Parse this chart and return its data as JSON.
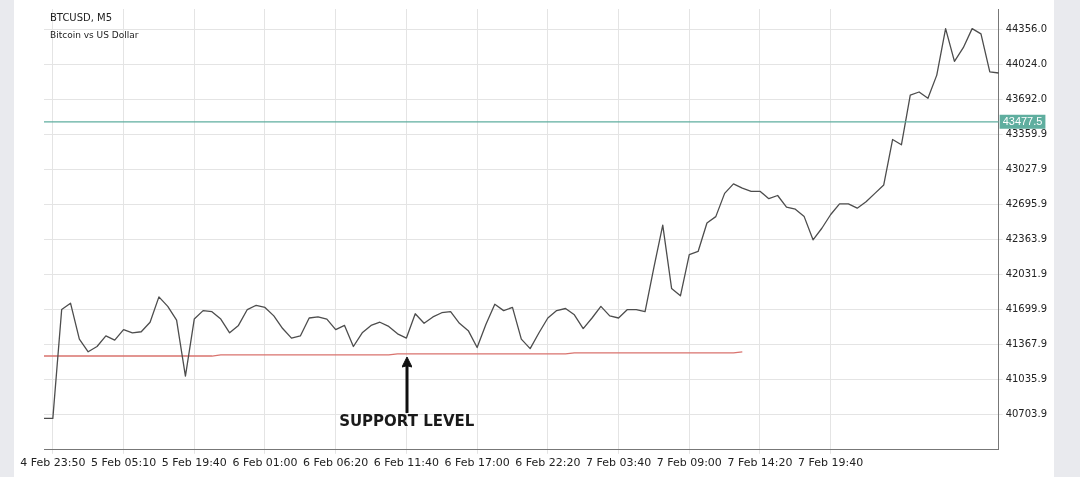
{
  "chart_data": {
    "type": "line",
    "title": "BTCUSD, M5",
    "subtitle": "Bitcoin vs US Dollar",
    "categories": [
      null,
      "4 Feb 23:50",
      null,
      null,
      null,
      null,
      null,
      null,
      null,
      "5 Feb 05:10",
      null,
      null,
      null,
      null,
      null,
      null,
      null,
      "5 Feb 19:40",
      null,
      null,
      null,
      null,
      null,
      null,
      null,
      "6 Feb 01:00",
      null,
      null,
      null,
      null,
      null,
      null,
      null,
      "6 Feb 06:20",
      null,
      null,
      null,
      null,
      null,
      null,
      null,
      "6 Feb 11:40",
      null,
      null,
      null,
      null,
      null,
      null,
      null,
      "6 Feb 17:00",
      null,
      null,
      null,
      null,
      null,
      null,
      null,
      "6 Feb 22:20",
      null,
      null,
      null,
      null,
      null,
      null,
      null,
      "7 Feb 03:40",
      null,
      null,
      null,
      null,
      null,
      null,
      null,
      "7 Feb 09:00",
      null,
      null,
      null,
      null,
      null,
      null,
      null,
      "7 Feb 14:20",
      null,
      null,
      null,
      null,
      null,
      null,
      null,
      "7 Feb 19:40",
      null,
      null,
      null,
      null,
      null,
      null,
      null,
      null,
      null,
      null,
      null,
      null,
      null,
      null,
      null,
      null,
      null,
      null,
      null
    ],
    "series": [
      {
        "color": "#4d4d4d",
        "values": [
          40670,
          40670,
          41700,
          41760,
          41420,
          41300,
          41350,
          41450,
          41410,
          41510,
          41480,
          41490,
          41580,
          41820,
          41730,
          41600,
          41070,
          41610,
          41690,
          41680,
          41610,
          41480,
          41550,
          41700,
          41740,
          41720,
          41640,
          41520,
          41430,
          41450,
          41620,
          41630,
          41610,
          41510,
          41550,
          41350,
          41480,
          41550,
          41580,
          41540,
          41470,
          41430,
          41660,
          41570,
          41630,
          41670,
          41680,
          41570,
          41500,
          41340,
          41560,
          41750,
          41690,
          41720,
          41420,
          41330,
          41480,
          41620,
          41690,
          41710,
          41650,
          41520,
          41620,
          41730,
          41640,
          41620,
          41700,
          41700,
          41680,
          42100,
          42500,
          41900,
          41830,
          42220,
          42250,
          42520,
          42580,
          42800,
          42890,
          42850,
          42820,
          42820,
          42750,
          42780,
          42670,
          42650,
          42580,
          42360,
          42470,
          42600,
          42700,
          42700,
          42660,
          42720,
          42800,
          42880,
          43310,
          43260,
          43730,
          43760,
          43700,
          43920,
          44360,
          44050,
          44180,
          44360,
          44310,
          43950,
          43940
        ]
      },
      {
        "type": "line",
        "color": "#d9736e",
        "values": [
          41260,
          41260,
          41260,
          41260,
          41260,
          41260,
          41260,
          41260,
          41260,
          41260,
          41260,
          41260,
          41260,
          41260,
          41260,
          41260,
          41260,
          41260,
          41260,
          41260,
          41270,
          41270,
          41270,
          41270,
          41270,
          41270,
          41270,
          41270,
          41270,
          41270,
          41270,
          41270,
          41270,
          41270,
          41270,
          41270,
          41270,
          41270,
          41270,
          41270,
          41280,
          41280,
          41280,
          41280,
          41280,
          41280,
          41280,
          41280,
          41280,
          41280,
          41280,
          41280,
          41280,
          41280,
          41280,
          41280,
          41280,
          41280,
          41280,
          41280,
          41290,
          41290,
          41290,
          41290,
          41290,
          41290,
          41290,
          41290,
          41290,
          41290,
          41290,
          41290,
          41290,
          41290,
          41290,
          41290,
          41290,
          41290,
          41290,
          41300,
          null,
          null,
          null,
          null,
          null,
          null,
          null,
          null,
          null,
          null,
          null,
          null,
          null,
          null,
          null,
          null,
          null,
          null,
          null,
          null,
          null,
          null,
          null,
          null,
          null,
          null,
          null,
          null,
          null
        ]
      }
    ],
    "ylim": [
      40372,
      44546
    ],
    "yticks": [
      {
        "value": 40703.9,
        "label": "40703.9"
      },
      {
        "value": 41035.9,
        "label": "41035.9"
      },
      {
        "value": 41367.9,
        "label": "41367.9"
      },
      {
        "value": 41699.9,
        "label": "41699.9"
      },
      {
        "value": 42031.9,
        "label": "42031.9"
      },
      {
        "value": 42363.9,
        "label": "42363.9"
      },
      {
        "value": 42695.9,
        "label": "42695.9"
      },
      {
        "value": 43027.9,
        "label": "43027.9"
      },
      {
        "value": 43359.9,
        "label": "43359.9"
      },
      {
        "value": 43692.0,
        "label": "43692.0"
      },
      {
        "value": 44024.0,
        "label": "44024.0"
      },
      {
        "value": 44356.0,
        "label": "44356.0"
      }
    ],
    "ref_lines": [
      {
        "axis": "y",
        "value": 43477.5,
        "label": "43477.5",
        "color": "#5fae9f"
      }
    ],
    "annotations": [
      "SUPPORT LEVEL"
    ],
    "grid": true,
    "marker": "none",
    "line_style": "solid"
  }
}
